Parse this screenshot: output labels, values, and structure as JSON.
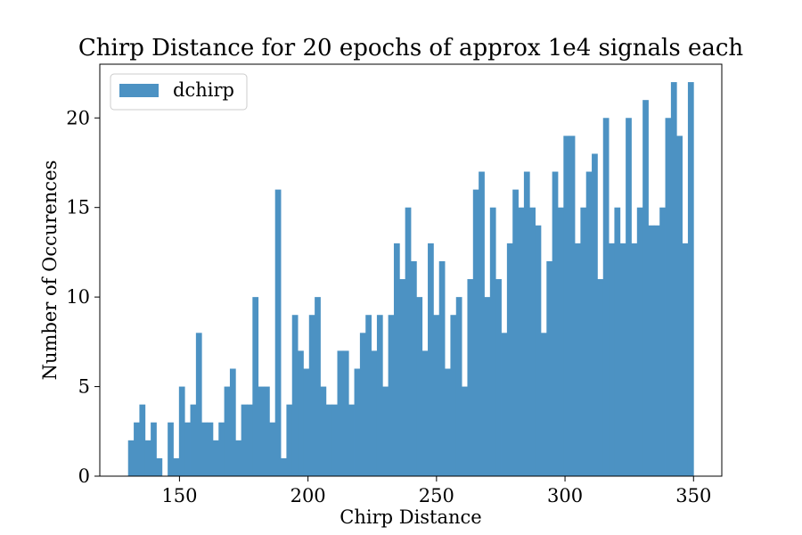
{
  "chart_data": {
    "type": "bar",
    "title": "Chirp Distance for 20 epochs of approx 1e4 signals each",
    "xlabel": "Chirp Distance",
    "ylabel": "Number of Occurences",
    "xlim": [
      119,
      361
    ],
    "ylim": [
      0,
      23
    ],
    "xticks": [
      150,
      200,
      250,
      300,
      350
    ],
    "yticks": [
      0,
      5,
      10,
      15,
      20
    ],
    "grid": false,
    "legend_position": "top-left",
    "bin_start": 130,
    "bin_width": 2.2,
    "series": [
      {
        "name": "dchirp",
        "color": "#4c92c3",
        "values": [
          2,
          3,
          4,
          2,
          3,
          1,
          0,
          3,
          1,
          5,
          3,
          4,
          8,
          3,
          3,
          2,
          3,
          5,
          6,
          2,
          4,
          4,
          10,
          5,
          5,
          3,
          16,
          1,
          4,
          9,
          7,
          6,
          9,
          10,
          5,
          4,
          4,
          7,
          7,
          4,
          6,
          8,
          9,
          7,
          9,
          5,
          9,
          13,
          11,
          15,
          12,
          10,
          7,
          13,
          9,
          12,
          6,
          9,
          10,
          5,
          11,
          16,
          17,
          10,
          15,
          11,
          8,
          13,
          16,
          15,
          17,
          15,
          14,
          8,
          12,
          17,
          15,
          19,
          19,
          13,
          15,
          17,
          18,
          11,
          20,
          13,
          15,
          13,
          20,
          13,
          15,
          21,
          14,
          14,
          15,
          20,
          22,
          19,
          13,
          22
        ]
      }
    ]
  }
}
